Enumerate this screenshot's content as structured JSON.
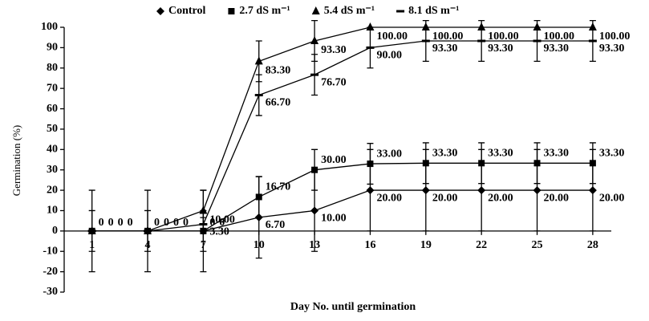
{
  "chart_data": {
    "type": "line",
    "xlabel": "Day No. until germination",
    "ylabel": "Germination (%)",
    "x": [
      1,
      4,
      7,
      10,
      13,
      16,
      19,
      22,
      25,
      28
    ],
    "xlim": [
      -0.5,
      29
    ],
    "xticks": [
      1,
      4,
      7,
      10,
      13,
      16,
      19,
      22,
      25,
      28
    ],
    "ylim": [
      -30,
      100
    ],
    "yticks": [
      -30,
      -20,
      -10,
      0,
      10,
      20,
      30,
      40,
      50,
      60,
      70,
      80,
      90,
      100
    ],
    "legend": "top",
    "series": [
      {
        "name": "Control",
        "color": "#000000",
        "marker": "diamond",
        "values": [
          0,
          0,
          0,
          6.7,
          10,
          20,
          20,
          20,
          20,
          20
        ],
        "value_labels": [
          "0",
          "0",
          "0",
          "6.70",
          "10.00",
          "20.00",
          "20.00",
          "20.00",
          "20.00",
          "20.00"
        ],
        "errors": [
          20,
          20,
          20,
          20,
          20,
          20,
          20,
          20,
          20,
          20
        ]
      },
      {
        "name": "2.7 dS m⁻¹",
        "color": "#000000",
        "marker": "square",
        "values": [
          0,
          0,
          0,
          16.7,
          30,
          33,
          33.3,
          33.3,
          33.3,
          33.3
        ],
        "value_labels": [
          "0",
          "0",
          "0",
          "16.70",
          "30.00",
          "33.00",
          "33.30",
          "33.30",
          "33.30",
          "33.30"
        ],
        "errors": [
          10,
          10,
          10,
          10,
          10,
          10,
          10,
          10,
          10,
          10
        ]
      },
      {
        "name": "5.4 dS m⁻¹",
        "color": "#000000",
        "marker": "triangle",
        "values": [
          0,
          0,
          10,
          83.3,
          93.3,
          100,
          100,
          100,
          100,
          100
        ],
        "value_labels": [
          "0",
          "0",
          "10.00",
          "83.30",
          "93.30",
          "100.00",
          "100.00",
          "100.00",
          "100.00",
          "100.00"
        ],
        "errors": [
          0,
          0,
          10,
          10,
          10,
          0,
          0,
          0,
          0,
          0
        ]
      },
      {
        "name": "8.1 dS m⁻¹",
        "color": "#000000",
        "marker": "dash",
        "values": [
          0,
          0,
          3.3,
          66.7,
          76.7,
          90,
          93.3,
          93.3,
          93.3,
          93.3
        ],
        "value_labels": [
          "0",
          "0",
          "3.30",
          "66.70",
          "76.70",
          "90.00",
          "93.30",
          "93.30",
          "93.30",
          "93.30"
        ],
        "errors": [
          0,
          0,
          3.3,
          10,
          10,
          10,
          10,
          10,
          10,
          10
        ]
      }
    ]
  }
}
